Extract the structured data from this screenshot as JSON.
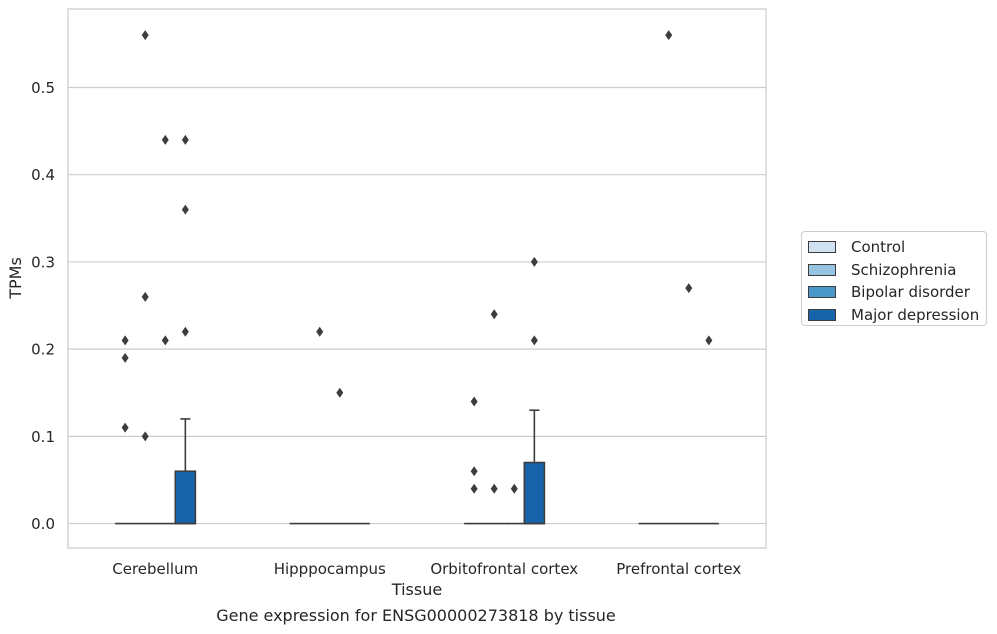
{
  "chart_data": {
    "type": "box",
    "caption": "Gene expression for ENSG00000273818 by tissue",
    "xlabel": "Tissue",
    "ylabel": "TPMs",
    "ylim": [
      -0.028,
      0.59
    ],
    "yticks": [
      0.0,
      0.1,
      0.2,
      0.3,
      0.4,
      0.5
    ],
    "ytick_labels": [
      "0.0",
      "0.1",
      "0.2",
      "0.3",
      "0.4",
      "0.5"
    ],
    "grid": "horizontal",
    "legend_position": "outside-right",
    "categories": [
      "Cerebellum",
      "Hipppocampus",
      "Orbitofrontal cortex",
      "Prefrontal cortex"
    ],
    "series": [
      {
        "name": "Control",
        "color": "#d0e1f2",
        "boxes": [
          {
            "q1": 0,
            "median": 0,
            "q3": 0,
            "whisker_low": 0,
            "whisker_high": 0,
            "outliers": [
              0.21,
              0.19,
              0.11
            ]
          },
          {
            "q1": 0,
            "median": 0,
            "q3": 0,
            "whisker_low": 0,
            "whisker_high": 0,
            "outliers": []
          },
          {
            "q1": 0,
            "median": 0,
            "q3": 0,
            "whisker_low": 0,
            "whisker_high": 0,
            "outliers": [
              0.14,
              0.06,
              0.04
            ]
          },
          {
            "q1": 0,
            "median": 0,
            "q3": 0,
            "whisker_low": 0,
            "whisker_high": 0,
            "outliers": []
          }
        ]
      },
      {
        "name": "Schizophrenia",
        "color": "#94c4df",
        "boxes": [
          {
            "q1": 0,
            "median": 0,
            "q3": 0,
            "whisker_low": 0,
            "whisker_high": 0,
            "outliers": [
              0.56,
              0.26,
              0.1
            ]
          },
          {
            "q1": 0,
            "median": 0,
            "q3": 0,
            "whisker_low": 0,
            "whisker_high": 0,
            "outliers": [
              0.22
            ]
          },
          {
            "q1": 0,
            "median": 0,
            "q3": 0,
            "whisker_low": 0,
            "whisker_high": 0,
            "outliers": [
              0.24,
              0.04
            ]
          },
          {
            "q1": 0,
            "median": 0,
            "q3": 0,
            "whisker_low": 0,
            "whisker_high": 0,
            "outliers": [
              0.56
            ]
          }
        ]
      },
      {
        "name": "Bipolar disorder",
        "color": "#4a98c9",
        "boxes": [
          {
            "q1": 0,
            "median": 0,
            "q3": 0,
            "whisker_low": 0,
            "whisker_high": 0,
            "outliers": [
              0.44,
              0.21
            ]
          },
          {
            "q1": 0,
            "median": 0,
            "q3": 0,
            "whisker_low": 0,
            "whisker_high": 0,
            "outliers": [
              0.15
            ]
          },
          {
            "q1": 0,
            "median": 0,
            "q3": 0,
            "whisker_low": 0,
            "whisker_high": 0,
            "outliers": [
              0.04
            ]
          },
          {
            "q1": 0,
            "median": 0,
            "q3": 0,
            "whisker_low": 0,
            "whisker_high": 0,
            "outliers": [
              0.27
            ]
          }
        ]
      },
      {
        "name": "Major depression",
        "color": "#1764ab",
        "boxes": [
          {
            "q1": 0,
            "median": 0,
            "q3": 0.06,
            "whisker_low": 0,
            "whisker_high": 0.12,
            "outliers": [
              0.44,
              0.36,
              0.22
            ]
          },
          {
            "q1": 0,
            "median": 0,
            "q3": 0,
            "whisker_low": 0,
            "whisker_high": 0,
            "outliers": []
          },
          {
            "q1": 0,
            "median": 0,
            "q3": 0.07,
            "whisker_low": 0,
            "whisker_high": 0.13,
            "outliers": [
              0.3,
              0.21
            ]
          },
          {
            "q1": 0,
            "median": 0,
            "q3": 0,
            "whisker_low": 0,
            "whisker_high": 0,
            "outliers": [
              0.21
            ]
          }
        ]
      }
    ]
  }
}
